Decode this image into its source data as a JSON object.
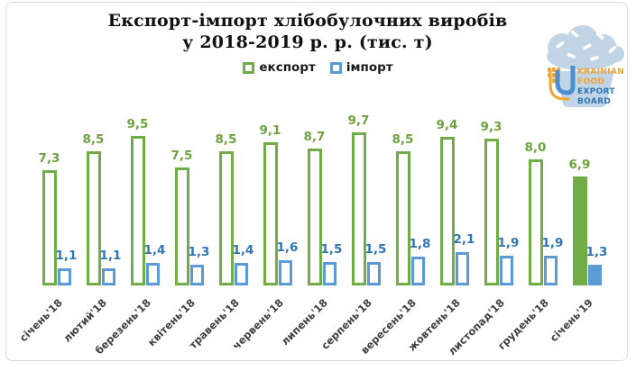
{
  "page": {
    "background": "#FFFFFF",
    "frame_border_color": "#D9D9D9"
  },
  "chart_data": {
    "type": "bar",
    "title": "Експорт-імпорт хлібобулочних виробів у 2018-2019 р. р. (тис. т)",
    "title_lines": [
      "Експорт-імпорт хлібобулочних виробів",
      "у 2018-2019 р. р. (тис. т)"
    ],
    "categories": [
      "січень'18",
      "лютий'18",
      "березень'18",
      "квітень'18",
      "травень'18",
      "червень'18",
      "липень'18",
      "серпень'18",
      "вересень'18",
      "жовтень'18",
      "листопад'18",
      "грудень'18",
      "січень'19"
    ],
    "series": [
      {
        "name": "експорт",
        "color": "#70AD47",
        "label_color": "#6DA33F",
        "values": [
          7.3,
          8.5,
          9.5,
          7.5,
          8.5,
          9.1,
          8.7,
          9.7,
          8.5,
          9.4,
          9.3,
          8.0,
          6.9
        ]
      },
      {
        "name": "імпорт",
        "color": "#5B9BD5",
        "label_color": "#2E75B6",
        "values": [
          1.1,
          1.1,
          1.4,
          1.3,
          1.4,
          1.6,
          1.5,
          1.5,
          1.8,
          2.1,
          1.9,
          1.9,
          1.3
        ]
      }
    ],
    "value_label_format": "one decimal, comma separator",
    "bar_style": "hollow outlined bars for 2018 months, solid filled bars for січень'19",
    "highlight_category": "січень'19",
    "highlight_index": 12,
    "ylim": [
      0,
      10
    ],
    "grid": false,
    "axis_lines": false,
    "legend_position": "top-center",
    "x_tick_rotation_deg": -45,
    "x_tick_color": "#404040"
  },
  "legend": {
    "items": [
      {
        "label": "експорт",
        "color": "#70AD47"
      },
      {
        "label": "імпорт",
        "color": "#5B9BD5"
      }
    ]
  },
  "logo": {
    "name": "Ukrainian Food Export Board",
    "lines": [
      "KRAINIAN",
      "FOOD",
      "EXPORT",
      "BOARD"
    ],
    "colors": {
      "light_blue": "#C1D4E6",
      "orange": "#F0A32F",
      "blue": "#2E75B6"
    }
  }
}
